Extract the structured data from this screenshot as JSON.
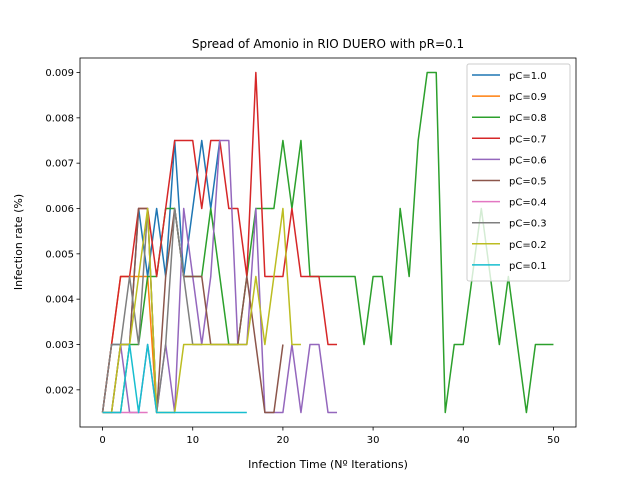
{
  "chart_data": {
    "type": "line",
    "title": "Spread of Amonio in RIO DUERO with pR=0.1",
    "xlabel": "Infection Time (Nº Iterations)",
    "ylabel": "Infection rate (%)",
    "xlim": [
      -2.5,
      52.5
    ],
    "ylim": [
      0.00118,
      0.00932
    ],
    "xticks": [
      0,
      10,
      20,
      30,
      40,
      50
    ],
    "xtick_labels": [
      "0",
      "10",
      "20",
      "30",
      "40",
      "50"
    ],
    "yticks": [
      0.002,
      0.003,
      0.004,
      0.005,
      0.006,
      0.007,
      0.008,
      0.009
    ],
    "ytick_labels": [
      "0.002",
      "0.003",
      "0.004",
      "0.005",
      "0.006",
      "0.007",
      "0.008",
      "0.009"
    ],
    "grid": false,
    "legend_position": "top-right",
    "series": [
      {
        "name": "pC=1.0",
        "color": "#1f77b4",
        "x": [
          0,
          1,
          2,
          3,
          4,
          5,
          6,
          7,
          8,
          9,
          10,
          11,
          12,
          13
        ],
        "y": [
          0.0015,
          0.003,
          0.003,
          0.003,
          0.006,
          0.0045,
          0.006,
          0.0045,
          0.0075,
          0.0045,
          0.006,
          0.0075,
          0.006,
          0.0075
        ]
      },
      {
        "name": "pC=0.9",
        "color": "#ff7f0e",
        "x": [
          0,
          1,
          2,
          3,
          4,
          5,
          6
        ],
        "y": [
          0.0015,
          0.003,
          0.0045,
          0.0045,
          0.0045,
          0.0045,
          0.0015
        ]
      },
      {
        "name": "pC=0.8",
        "color": "#2ca02c",
        "x": [
          0,
          1,
          2,
          3,
          4,
          5,
          6,
          7,
          8,
          9,
          10,
          11,
          12,
          13,
          14,
          15,
          16,
          17,
          18,
          19,
          20,
          21,
          22,
          23,
          24,
          25,
          26,
          27,
          28,
          29,
          30,
          31,
          32,
          33,
          34,
          35,
          36,
          37,
          38,
          39,
          40,
          41,
          42,
          43,
          44,
          45,
          46,
          47,
          48,
          49,
          50
        ],
        "y": [
          0.0015,
          0.0015,
          0.0015,
          0.003,
          0.003,
          0.0045,
          0.0045,
          0.006,
          0.006,
          0.0045,
          0.0045,
          0.0045,
          0.006,
          0.0045,
          0.003,
          0.003,
          0.0045,
          0.006,
          0.006,
          0.006,
          0.0075,
          0.006,
          0.0075,
          0.0045,
          0.0045,
          0.0045,
          0.0045,
          0.0045,
          0.0045,
          0.003,
          0.0045,
          0.0045,
          0.003,
          0.006,
          0.0045,
          0.0075,
          0.009,
          0.009,
          0.0015,
          0.003,
          0.003,
          0.0045,
          0.006,
          0.0045,
          0.003,
          0.0045,
          0.003,
          0.0015,
          0.003,
          0.003,
          0.003
        ]
      },
      {
        "name": "pC=0.7",
        "color": "#d62728",
        "x": [
          0,
          1,
          2,
          3,
          4,
          5,
          6,
          7,
          8,
          9,
          10,
          11,
          12,
          13,
          14,
          15,
          16,
          17,
          18,
          19,
          20,
          21,
          22,
          23,
          24,
          25,
          26
        ],
        "y": [
          0.0015,
          0.003,
          0.0045,
          0.0045,
          0.006,
          0.006,
          0.0045,
          0.006,
          0.0075,
          0.0075,
          0.0075,
          0.006,
          0.0075,
          0.0075,
          0.006,
          0.006,
          0.0045,
          0.009,
          0.0045,
          0.0045,
          0.0045,
          0.006,
          0.0045,
          0.0045,
          0.0045,
          0.003,
          0.003
        ]
      },
      {
        "name": "pC=0.6",
        "color": "#9467bd",
        "x": [
          0,
          1,
          2,
          3,
          4,
          5,
          6,
          7,
          8,
          9,
          10,
          11,
          12,
          13,
          14,
          15,
          16,
          17,
          18,
          19,
          20,
          21,
          22,
          23,
          24,
          25,
          26
        ],
        "y": [
          0.0015,
          0.0015,
          0.003,
          0.0015,
          0.0015,
          0.003,
          0.0015,
          0.003,
          0.0015,
          0.006,
          0.0045,
          0.003,
          0.0045,
          0.0075,
          0.0075,
          0.003,
          0.003,
          0.006,
          0.0015,
          0.0015,
          0.0015,
          0.003,
          0.0015,
          0.003,
          0.003,
          0.0015,
          0.0015
        ]
      },
      {
        "name": "pC=0.5",
        "color": "#8c564b",
        "x": [
          0,
          1,
          2,
          3,
          4,
          5,
          6,
          7,
          8,
          9,
          10,
          11,
          12,
          13,
          14,
          15,
          16,
          17,
          18,
          19,
          20
        ],
        "y": [
          0.0015,
          0.0015,
          0.003,
          0.003,
          0.006,
          0.006,
          0.0015,
          0.0045,
          0.006,
          0.0045,
          0.0045,
          0.0045,
          0.003,
          0.003,
          0.003,
          0.003,
          0.0045,
          0.003,
          0.0015,
          0.0015,
          0.003
        ]
      },
      {
        "name": "pC=0.4",
        "color": "#e377c2",
        "x": [
          0,
          1,
          2,
          3,
          4,
          5
        ],
        "y": [
          0.0015,
          0.0015,
          0.0015,
          0.0015,
          0.0015,
          0.0015
        ]
      },
      {
        "name": "pC=0.3",
        "color": "#7f7f7f",
        "x": [
          0,
          1,
          2,
          3,
          4,
          5,
          6,
          7,
          8,
          9,
          10,
          11
        ],
        "y": [
          0.0015,
          0.003,
          0.003,
          0.0045,
          0.003,
          0.006,
          0.0015,
          0.003,
          0.006,
          0.0045,
          0.003,
          0.003
        ]
      },
      {
        "name": "pC=0.2",
        "color": "#bcbd22",
        "x": [
          0,
          1,
          2,
          3,
          4,
          5,
          6,
          7,
          8,
          9,
          10,
          11,
          12,
          13,
          14,
          15,
          16,
          17,
          18,
          19,
          20,
          21,
          22
        ],
        "y": [
          0.0015,
          0.0015,
          0.003,
          0.003,
          0.0045,
          0.006,
          0.0015,
          0.0015,
          0.0015,
          0.003,
          0.003,
          0.003,
          0.003,
          0.003,
          0.003,
          0.003,
          0.003,
          0.0045,
          0.003,
          0.0045,
          0.006,
          0.003,
          0.003
        ]
      },
      {
        "name": "pC=0.1",
        "color": "#17becf",
        "x": [
          0,
          1,
          2,
          3,
          4,
          5,
          6,
          7,
          8,
          9,
          10,
          11,
          12,
          13,
          14,
          15,
          16
        ],
        "y": [
          0.0015,
          0.0015,
          0.0015,
          0.003,
          0.0015,
          0.003,
          0.0015,
          0.0015,
          0.0015,
          0.0015,
          0.0015,
          0.0015,
          0.0015,
          0.0015,
          0.0015,
          0.0015,
          0.0015
        ]
      }
    ]
  }
}
